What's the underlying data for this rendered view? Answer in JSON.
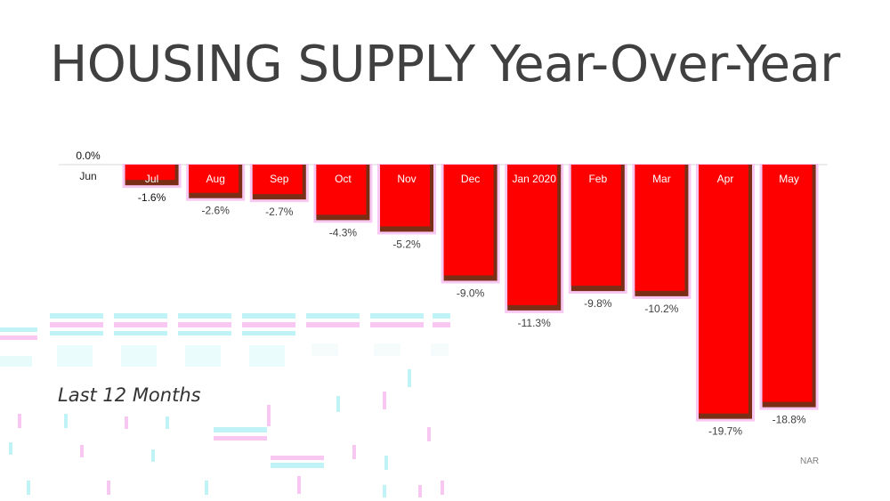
{
  "title": "HOUSING SUPPLY Year-Over-Year",
  "subtitle": "Last 12 Months",
  "source": "NAR",
  "colors": {
    "bar": "#ff0000",
    "bar_shadow": "#7a2e16",
    "bar_glow": "#f9c8f2",
    "text": "#404040",
    "axis": "#d9d9d9"
  },
  "chart_data": {
    "type": "bar",
    "categories": [
      "Jun",
      "Jul",
      "Aug",
      "Sep",
      "Oct",
      "Nov",
      "Dec",
      "Jan 2020",
      "Feb",
      "Mar",
      "Apr",
      "May"
    ],
    "values": [
      0.0,
      -1.6,
      -2.6,
      -2.7,
      -4.3,
      -5.2,
      -9.0,
      -11.3,
      -9.8,
      -10.2,
      -19.7,
      -18.8
    ],
    "data_labels": [
      "0.0%",
      "-1.6%",
      "-2.6%",
      "-2.7%",
      "-4.3%",
      "-5.2%",
      "-9.0%",
      "-11.3%",
      "-9.8%",
      "-10.2%",
      "-19.7%",
      "-18.8%"
    ],
    "ylim": [
      -20,
      0
    ],
    "xlabel": "",
    "ylabel": "",
    "grid": false,
    "legend": "none"
  }
}
